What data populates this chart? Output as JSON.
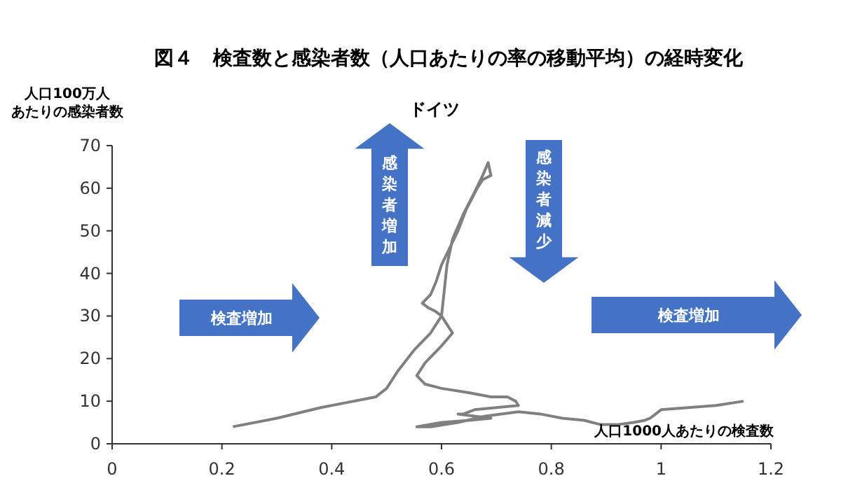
{
  "chart_data": {
    "type": "line",
    "title": "図４　検査数と感染者数（人口あたりの率の移動平均）の経時変化",
    "subtitle": "ドイツ",
    "xlabel": "人口1000人あたりの検査数",
    "ylabel": "人口100万人あたりの感染者数",
    "annotations": [
      "検査増加",
      "感染者増加",
      "感染者減少",
      "検査増加"
    ],
    "xlim": [
      0,
      1.2
    ],
    "xticks": [
      0,
      0.2,
      0.4,
      0.6,
      0.8,
      1,
      1.2
    ],
    "ylim": [
      0,
      70
    ],
    "yticks": [
      0,
      10,
      20,
      30,
      40,
      50,
      60,
      70
    ],
    "grid": false,
    "marker": "none",
    "line_style": "solid",
    "series": [
      {
        "color": "#808080",
        "x": [
          0.22,
          0.3,
          0.38,
          0.44,
          0.48,
          0.5,
          0.52,
          0.55,
          0.58,
          0.6,
          0.605,
          0.61,
          0.62,
          0.64,
          0.66,
          0.675,
          0.685,
          0.69,
          0.675,
          0.665,
          0.645,
          0.63,
          0.615,
          0.6,
          0.59,
          0.58,
          0.565,
          0.575,
          0.59,
          0.6,
          0.61,
          0.62,
          0.6,
          0.57,
          0.555,
          0.57,
          0.6,
          0.65,
          0.69,
          0.72,
          0.735,
          0.74,
          0.7,
          0.66,
          0.64,
          0.63,
          0.66,
          0.69,
          0.65,
          0.6,
          0.555,
          0.58,
          0.63,
          0.68,
          0.74,
          0.78,
          0.82,
          0.86,
          0.89,
          0.92,
          0.95,
          0.97,
          0.98,
          1.0,
          1.05,
          1.1,
          1.15
        ],
        "values": [
          4,
          6,
          8.5,
          10,
          11,
          13,
          17,
          22,
          26,
          30,
          36,
          42,
          48,
          54,
          59,
          63,
          66,
          63,
          62,
          60,
          55,
          50,
          46,
          42,
          38,
          35,
          33,
          32,
          31,
          30,
          28,
          26,
          23,
          19,
          16,
          14,
          13,
          12,
          11,
          11,
          10,
          9,
          8.5,
          8,
          7,
          7,
          6.5,
          6,
          5.5,
          5,
          4,
          4,
          5,
          6.5,
          7.5,
          7,
          6,
          5.5,
          4.5,
          4.5,
          5,
          5.5,
          6,
          8,
          8.5,
          9,
          10
        ]
      }
    ]
  }
}
